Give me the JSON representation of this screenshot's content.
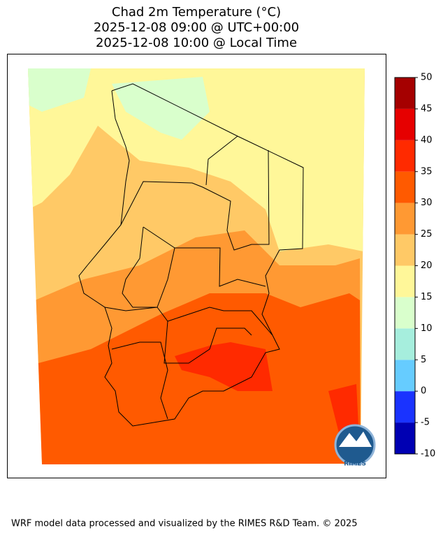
{
  "title": [
    "Chad 2m Temperature (°C)",
    "2025-12-08 09:00 @ UTC+00:00",
    "2025-12-08 10:00 @ Local Time"
  ],
  "colorbar": {
    "lim": [
      -10,
      50
    ],
    "ticks": [
      -10,
      -5,
      0,
      5,
      10,
      15,
      20,
      25,
      30,
      35,
      40,
      45,
      50
    ],
    "colors": [
      "#0000b3",
      "#1a33ff",
      "#66ccff",
      "#a6eedd",
      "#d9ffcc",
      "#fff799",
      "#ffc966",
      "#ff9933",
      "#ff5a00",
      "#ff2a00",
      "#e60000",
      "#a50000"
    ]
  },
  "logo_text": "RIMES",
  "footer": "WRF model data processed and visualized by the RIMES R&D Team. © 2025"
}
